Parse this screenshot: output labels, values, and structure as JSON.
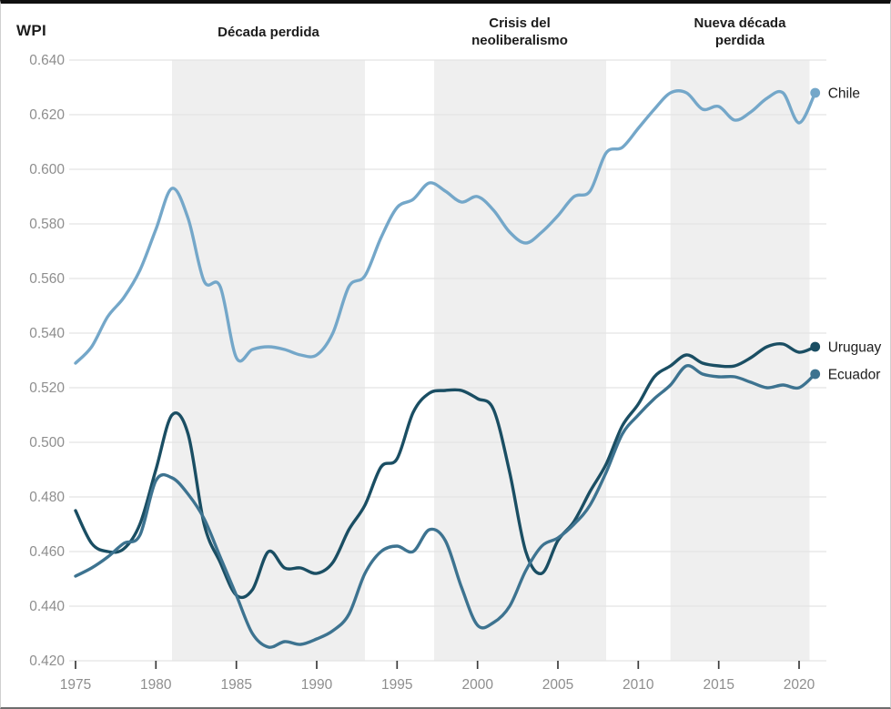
{
  "header": {
    "index_label": "WPI"
  },
  "chart_data": {
    "type": "line",
    "title": "",
    "ylabel": "WPI",
    "xlabel": "",
    "grid": "horizontal",
    "legend_position": "end-of-line labels with dots",
    "ylim": [
      0.42,
      0.64
    ],
    "yticks": [
      0.42,
      0.44,
      0.46,
      0.48,
      0.5,
      0.52,
      0.54,
      0.56,
      0.58,
      0.6,
      0.62,
      0.64
    ],
    "xticks": [
      1975,
      1980,
      1985,
      1990,
      1995,
      2000,
      2005,
      2010,
      2015,
      2020
    ],
    "xlim": [
      1975,
      2021
    ],
    "years": [
      1975,
      1976,
      1977,
      1978,
      1979,
      1980,
      1981,
      1982,
      1983,
      1984,
      1985,
      1986,
      1987,
      1988,
      1989,
      1990,
      1991,
      1992,
      1993,
      1994,
      1995,
      1996,
      1997,
      1998,
      1999,
      2000,
      2001,
      2002,
      2003,
      2004,
      2005,
      2006,
      2007,
      2008,
      2009,
      2010,
      2011,
      2012,
      2013,
      2014,
      2015,
      2016,
      2017,
      2018,
      2019,
      2020,
      2021
    ],
    "series": [
      {
        "name": "Chile",
        "color": "#74a7c9",
        "values": [
          0.529,
          0.535,
          0.546,
          0.553,
          0.563,
          0.578,
          0.593,
          0.582,
          0.559,
          0.557,
          0.531,
          0.534,
          0.535,
          0.534,
          0.532,
          0.532,
          0.54,
          0.557,
          0.561,
          0.575,
          0.586,
          0.589,
          0.595,
          0.592,
          0.588,
          0.59,
          0.585,
          0.577,
          0.573,
          0.577,
          0.583,
          0.59,
          0.592,
          0.606,
          0.608,
          0.615,
          0.622,
          0.628,
          0.628,
          0.622,
          0.623,
          0.618,
          0.621,
          0.626,
          0.628,
          0.617,
          0.628
        ]
      },
      {
        "name": "Uruguay",
        "color": "#1a4e63",
        "values": [
          0.475,
          0.463,
          0.46,
          0.461,
          0.47,
          0.49,
          0.51,
          0.503,
          0.47,
          0.456,
          0.444,
          0.446,
          0.46,
          0.454,
          0.454,
          0.452,
          0.456,
          0.468,
          0.477,
          0.491,
          0.494,
          0.511,
          0.518,
          0.519,
          0.519,
          0.516,
          0.512,
          0.489,
          0.46,
          0.452,
          0.464,
          0.471,
          0.482,
          0.492,
          0.506,
          0.514,
          0.524,
          0.528,
          0.532,
          0.529,
          0.528,
          0.528,
          0.531,
          0.535,
          0.536,
          0.533,
          0.535
        ]
      },
      {
        "name": "Ecuador",
        "color": "#3d7390",
        "values": [
          0.451,
          0.454,
          0.458,
          0.463,
          0.466,
          0.486,
          0.487,
          0.481,
          0.472,
          0.458,
          0.444,
          0.43,
          0.425,
          0.427,
          0.426,
          0.428,
          0.431,
          0.437,
          0.452,
          0.46,
          0.462,
          0.46,
          0.468,
          0.464,
          0.447,
          0.433,
          0.434,
          0.44,
          0.453,
          0.462,
          0.465,
          0.47,
          0.477,
          0.489,
          0.503,
          0.51,
          0.516,
          0.521,
          0.528,
          0.525,
          0.524,
          0.524,
          0.522,
          0.52,
          0.521,
          0.52,
          0.525
        ]
      }
    ],
    "bands": [
      {
        "label": "Década perdida",
        "from": 1981,
        "to": 1993
      },
      {
        "label": "Crisis del neoliberalismo",
        "from": 1997.3,
        "to": 2008
      },
      {
        "label": "Nueva década perdida",
        "from": 2012,
        "to": 2020.65
      }
    ],
    "colors": {
      "band_fill": "#efefef",
      "grid": "#e3e3e3",
      "tick": "#3c3c3c",
      "tick_text": "#8e8e8e",
      "annotation_text": "#1c1c1c"
    }
  }
}
